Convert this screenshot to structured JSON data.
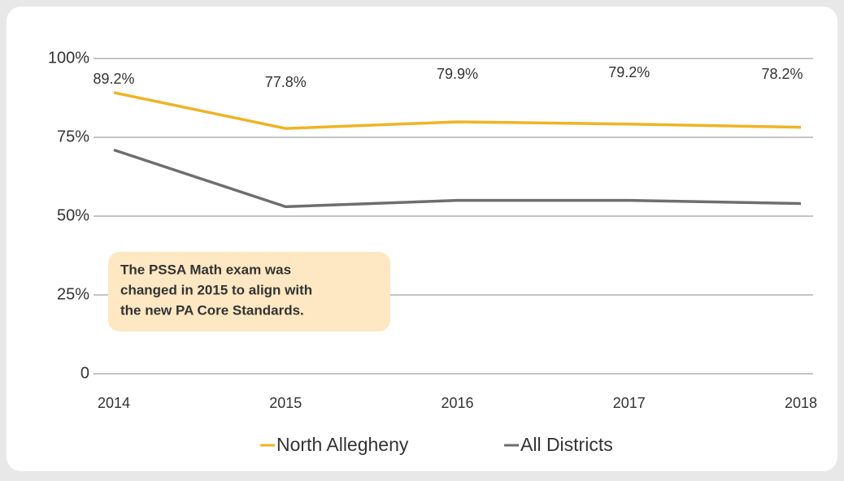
{
  "chart_data": {
    "type": "line",
    "categories": [
      "2014",
      "2015",
      "2016",
      "2017",
      "2018"
    ],
    "series": [
      {
        "name": "North Allegheny",
        "color": "#f0b323",
        "values": [
          89.2,
          77.8,
          79.9,
          79.2,
          78.2
        ],
        "value_labels": [
          "89.2%",
          "77.8%",
          "79.9%",
          "79.2%",
          "78.2%"
        ]
      },
      {
        "name": "All Districts",
        "color": "#6d6e70",
        "values": [
          71,
          53,
          55,
          55,
          54
        ]
      }
    ],
    "ylim": [
      0,
      100
    ],
    "yticks": [
      0,
      {
        "value": 25,
        "label": "25%"
      },
      {
        "value": 50,
        "label": "50%"
      },
      {
        "value": 75,
        "label": "75%"
      },
      {
        "value": 100,
        "label": "100%"
      }
    ],
    "grid": true,
    "legend": "bottom",
    "annotation": {
      "lines": [
        "The PSSA Math exam was",
        "changed in 2015 to align with",
        "the new PA Core Standards."
      ],
      "color": "#fde8c3"
    }
  }
}
